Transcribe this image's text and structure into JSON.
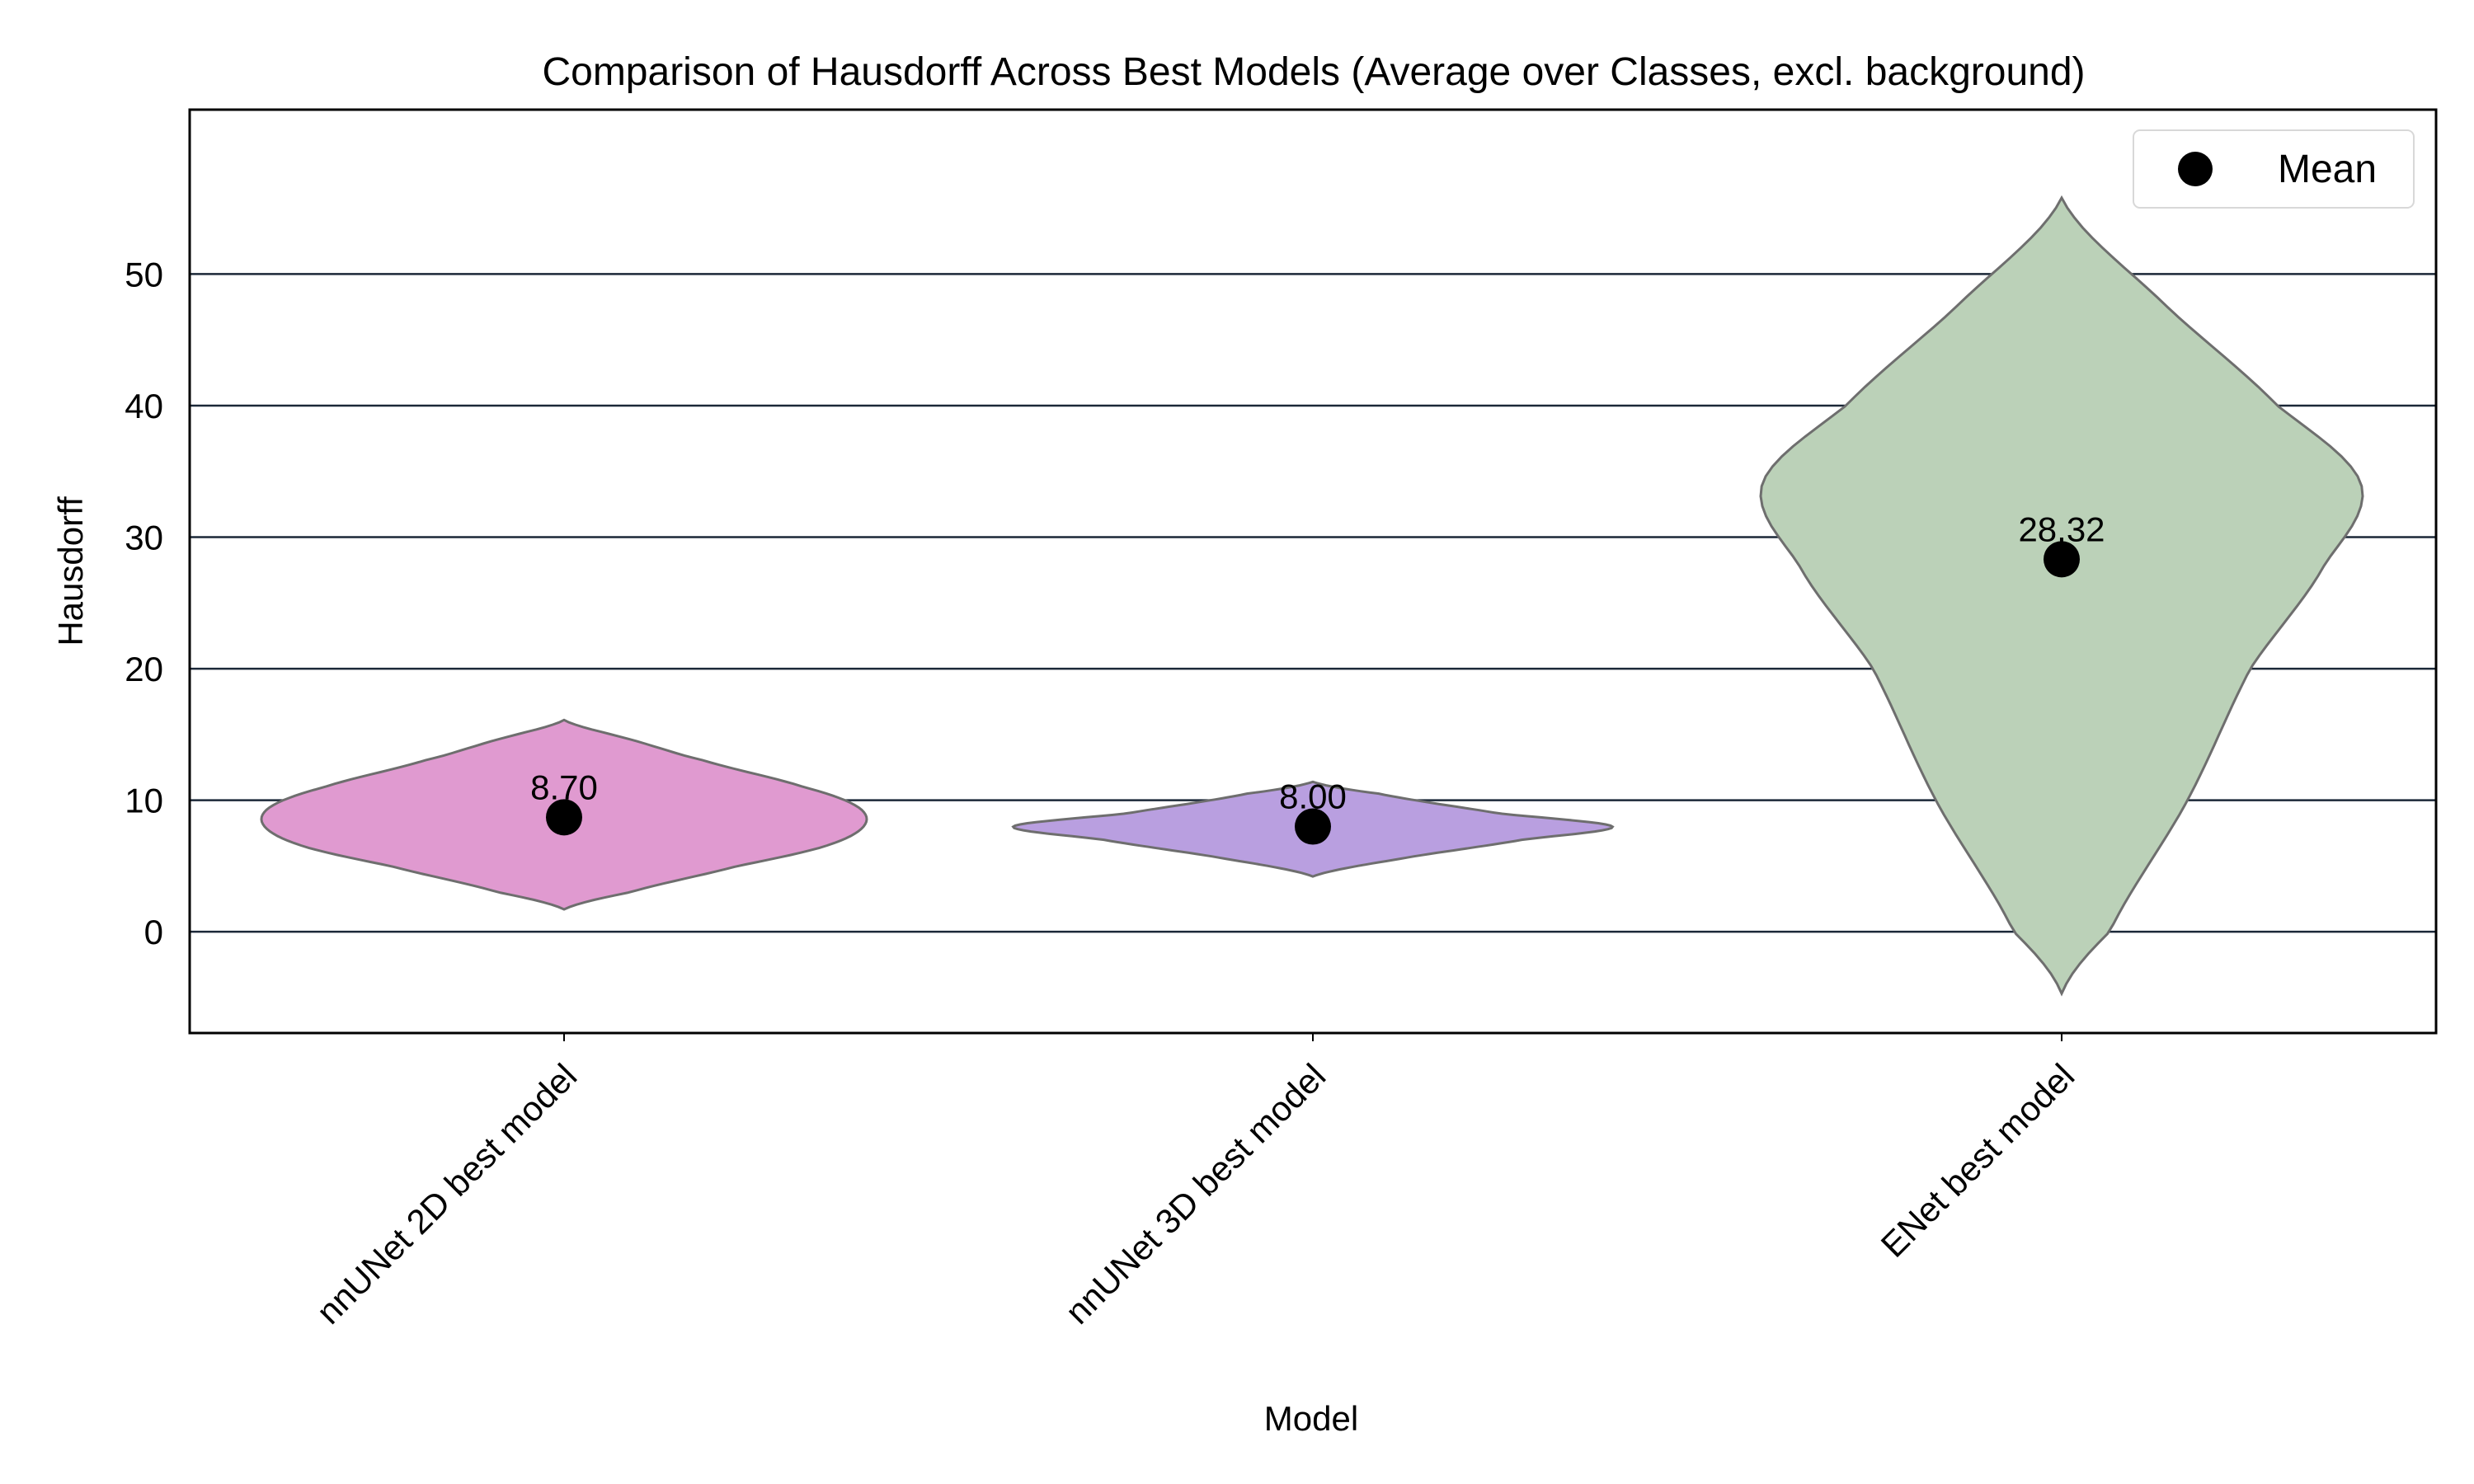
{
  "chart_data": {
    "type": "violin",
    "title": "Comparison of Hausdorff Across Best Models (Average over Classes, excl. background)",
    "xlabel": "Model",
    "ylabel": "Hausdorff",
    "categories": [
      "nnUNet 2D best model",
      "nnUNet 3D best model",
      "ENet best model"
    ],
    "colors": [
      "#e09ad0",
      "#b99fe0",
      "#bbd1b8"
    ],
    "means": [
      8.7,
      8.0,
      28.32
    ],
    "mean_labels": [
      "8.70",
      "8.00",
      "28.32"
    ],
    "ranges": [
      [
        1.7,
        16.1
      ],
      [
        4.2,
        11.4
      ],
      [
        -4.7,
        55.8
      ]
    ],
    "density_profiles": [
      [
        [
          1.7,
          0.0
        ],
        [
          3.0,
          0.22
        ],
        [
          5.0,
          0.58
        ],
        [
          6.5,
          0.87
        ],
        [
          8.0,
          1.0
        ],
        [
          9.5,
          0.98
        ],
        [
          11.0,
          0.8
        ],
        [
          13.0,
          0.47
        ],
        [
          14.5,
          0.24
        ],
        [
          16.1,
          0.0
        ]
      ],
      [
        [
          4.2,
          0.0
        ],
        [
          5.5,
          0.28
        ],
        [
          7.0,
          0.7
        ],
        [
          8.0,
          1.0
        ],
        [
          9.0,
          0.62
        ],
        [
          10.5,
          0.22
        ],
        [
          11.4,
          0.0
        ]
      ],
      [
        [
          -4.7,
          0.0
        ],
        [
          0.0,
          0.16
        ],
        [
          10.0,
          0.42
        ],
        [
          20.0,
          0.63
        ],
        [
          28.0,
          0.88
        ],
        [
          34.0,
          1.0
        ],
        [
          40.0,
          0.72
        ],
        [
          48.0,
          0.33
        ],
        [
          55.8,
          0.0
        ]
      ]
    ],
    "ylim": [
      -7.7,
      62.5
    ],
    "yticks": [
      0,
      10,
      20,
      30,
      40,
      50
    ],
    "grid": true,
    "legend": {
      "entries": [
        "Mean"
      ],
      "placement": "top-right"
    },
    "mean_marker_color": "#000000"
  }
}
